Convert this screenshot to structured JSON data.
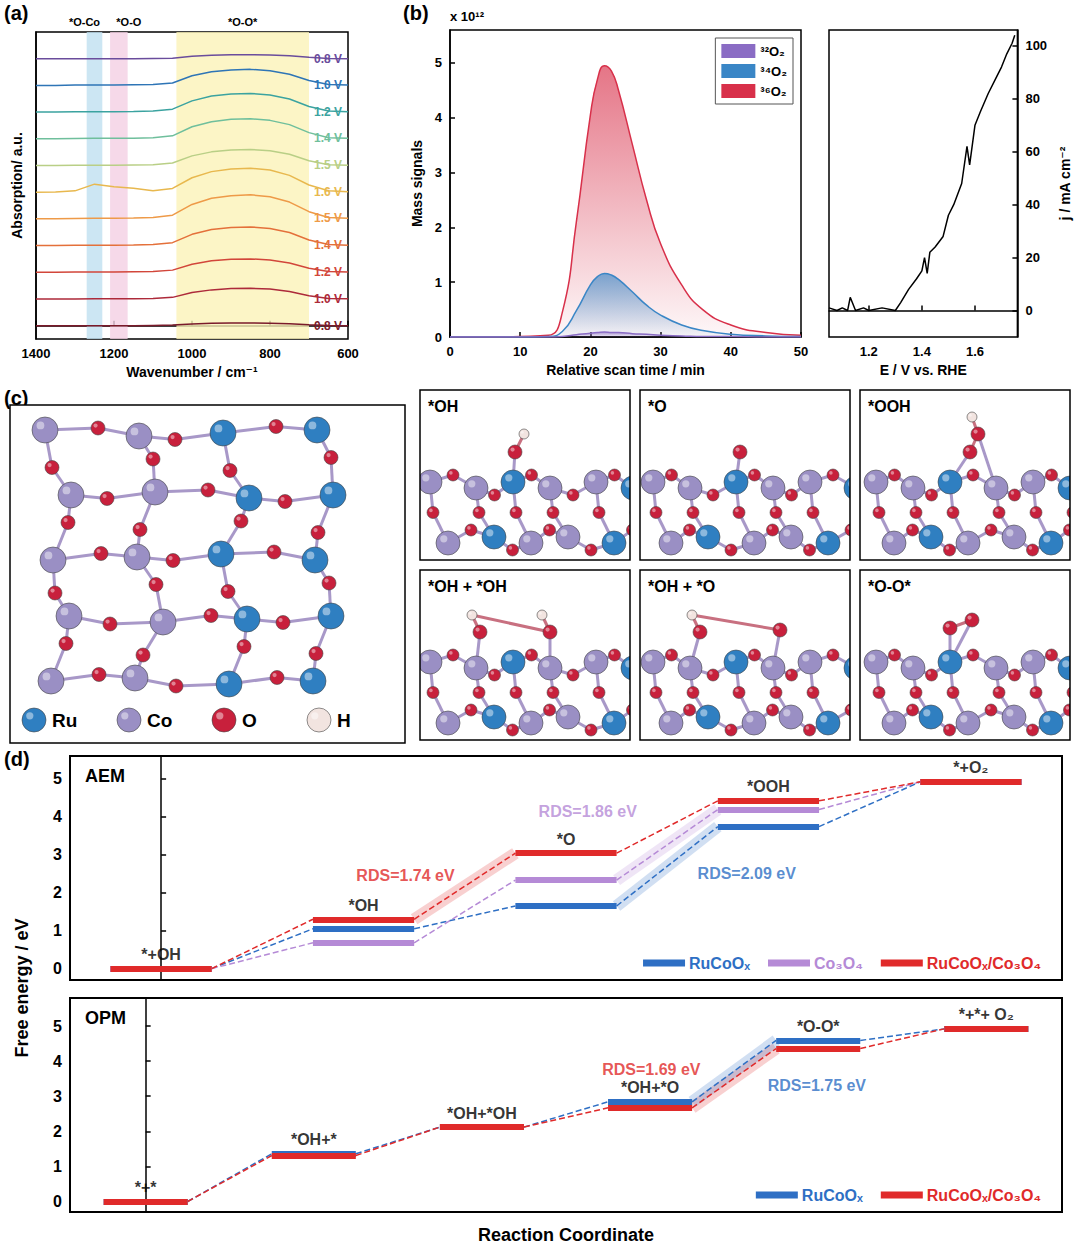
{
  "panel_labels": [
    "(a)",
    "(b)",
    "(c)",
    "(d)"
  ],
  "chart_data": [
    {
      "type": "line",
      "xlabel": "Wavenumber / cm⁻¹",
      "ylabel": "Absorption/ a.u.",
      "xlim": [
        1400,
        600
      ],
      "xticks": [
        1400,
        1200,
        1000,
        800,
        600
      ],
      "ylim": [
        -0.5,
        11
      ],
      "yticks": [],
      "tick_labels": "x",
      "bands": [
        {
          "label": "*O-Co",
          "from": 1270,
          "to": 1230,
          "color": "#bfe0f0"
        },
        {
          "label": "*O-O",
          "from": 1210,
          "to": 1165,
          "color": "#f4d0e4"
        },
        {
          "label": "*O-O*",
          "from": 1040,
          "to": 700,
          "color": "#fbf2b8"
        }
      ],
      "x": [
        1400,
        1350,
        1300,
        1250,
        1200,
        1150,
        1100,
        1050,
        1000,
        950,
        900,
        850,
        800,
        750,
        700,
        650,
        600
      ],
      "series": [
        {
          "name": "0.8 V",
          "color": "#6a4c9c",
          "values": [
            10,
            10,
            10,
            10,
            10,
            10,
            10.01,
            10.02,
            10.09,
            10.13,
            10.15,
            10.15,
            10.14,
            10.11,
            10.05,
            10.01,
            10
          ]
        },
        {
          "name": "1.0 V",
          "color": "#2e75b6",
          "values": [
            9,
            9,
            9.01,
            9.01,
            9.01,
            9.02,
            9.03,
            9.09,
            9.36,
            9.51,
            9.58,
            9.6,
            9.55,
            9.42,
            9.18,
            9.03,
            9.01
          ]
        },
        {
          "name": "1.2 V",
          "color": "#3ba3a0",
          "values": [
            8,
            8,
            8.01,
            8.01,
            8.01,
            8.02,
            8.04,
            8.11,
            8.42,
            8.6,
            8.68,
            8.7,
            8.64,
            8.49,
            8.21,
            8.04,
            8.01
          ]
        },
        {
          "name": "1.4 V",
          "color": "#6fbf9c",
          "values": [
            7,
            7,
            7.01,
            7.02,
            7.02,
            7.02,
            7.04,
            7.11,
            7.45,
            7.64,
            7.73,
            7.75,
            7.69,
            7.53,
            7.23,
            7.04,
            7.02
          ]
        },
        {
          "name": "1.5 V",
          "color": "#b9cf86",
          "values": [
            6,
            6,
            6.01,
            6.01,
            6.01,
            6.02,
            6.03,
            6.09,
            6.36,
            6.51,
            6.58,
            6.6,
            6.55,
            6.42,
            6.18,
            6.03,
            6.01
          ]
        },
        {
          "name": "1.6 V",
          "color": "#e8b84e",
          "values": [
            5,
            5.01,
            5.05,
            5.3,
            5.2,
            5.15,
            5.05,
            5.14,
            5.54,
            5.77,
            5.87,
            5.9,
            5.83,
            5.63,
            5.27,
            5.05,
            5.02
          ]
        },
        {
          "name": "1.5 V",
          "color": "#ee9a48",
          "values": [
            4,
            4,
            4.01,
            4.02,
            4.02,
            4.03,
            4.05,
            4.14,
            4.54,
            4.77,
            4.87,
            4.9,
            4.83,
            4.63,
            4.27,
            4.05,
            4.02
          ]
        },
        {
          "name": "1.4 V",
          "color": "#e4703a",
          "values": [
            3,
            3,
            3.01,
            3.01,
            3.01,
            3.02,
            3.04,
            3.11,
            3.42,
            3.6,
            3.68,
            3.7,
            3.64,
            3.49,
            3.21,
            3.04,
            3.01
          ]
        },
        {
          "name": "1.2 V",
          "color": "#d2463a",
          "values": [
            2,
            2,
            2.01,
            2.01,
            2.01,
            2.02,
            2.03,
            2.08,
            2.3,
            2.43,
            2.49,
            2.5,
            2.46,
            2.35,
            2.15,
            2.03,
            2.01
          ]
        },
        {
          "name": "1.0 V",
          "color": "#ad2a3a",
          "values": [
            1,
            1,
            1,
            1.01,
            1.01,
            1.01,
            1.02,
            1.06,
            1.24,
            1.34,
            1.39,
            1.4,
            1.37,
            1.28,
            1.12,
            1.02,
            1.01
          ]
        },
        {
          "name": "0.8 V",
          "color": "#7a1a2a",
          "values": [
            0,
            0,
            0,
            0,
            0,
            0,
            0.01,
            0.02,
            0.06,
            0.09,
            0.1,
            0.1,
            0.09,
            0.07,
            0.03,
            0.01,
            0
          ]
        }
      ]
    },
    {
      "type": "line",
      "xlabel": "Relative scan time / min",
      "ylabel": "Mass signals",
      "annotations": [
        {
          "text": "x 10¹²"
        }
      ],
      "xlim": [
        0,
        50
      ],
      "xticks": [
        0,
        10,
        20,
        30,
        40,
        50
      ],
      "ylim": [
        0,
        5.6
      ],
      "yticks": [
        0,
        1,
        2,
        3,
        4,
        5
      ],
      "legend": "top-right",
      "x": [
        0,
        5,
        10,
        14,
        16,
        18,
        20,
        21,
        22,
        23,
        24,
        26,
        28,
        30,
        33,
        36,
        40,
        45,
        50
      ],
      "series": [
        {
          "name": "³²O₂",
          "color": "#8a6cc4",
          "values": [
            0,
            0,
            0,
            0,
            0.01,
            0.04,
            0.07,
            0.08,
            0.09,
            0.08,
            0.08,
            0.06,
            0.05,
            0.03,
            0.02,
            0.01,
            0.01,
            0,
            0
          ]
        },
        {
          "name": "³⁴O₂",
          "color": "#3a86c6",
          "values": [
            0,
            0,
            0,
            0.01,
            0.1,
            0.48,
            0.95,
            1.1,
            1.16,
            1.13,
            1.05,
            0.82,
            0.58,
            0.4,
            0.22,
            0.12,
            0.05,
            0.02,
            0.01
          ]
        },
        {
          "name": "³⁶O₂",
          "color": "#d8304a",
          "values": [
            0,
            0,
            0.01,
            0.03,
            0.45,
            2.1,
            4.05,
            4.7,
            4.95,
            4.85,
            4.5,
            3.5,
            2.5,
            1.7,
            0.95,
            0.5,
            0.22,
            0.08,
            0.03
          ]
        }
      ]
    },
    {
      "type": "line",
      "xlabel": "E / V vs. RHE",
      "ylabel": "j / mA cm⁻²",
      "xlim": [
        1.05,
        1.76
      ],
      "xticks": [
        1.2,
        1.4,
        1.6
      ],
      "ylim": [
        -10,
        106
      ],
      "yticks": [
        0,
        20,
        40,
        60,
        80,
        100
      ],
      "color": "#000000",
      "x": [
        1.05,
        1.08,
        1.1,
        1.12,
        1.13,
        1.15,
        1.18,
        1.2,
        1.25,
        1.3,
        1.32,
        1.35,
        1.38,
        1.4,
        1.41,
        1.42,
        1.43,
        1.45,
        1.48,
        1.5,
        1.52,
        1.55,
        1.57,
        1.58,
        1.6,
        1.62,
        1.65,
        1.68,
        1.7,
        1.72,
        1.74,
        1.75
      ],
      "values": [
        1,
        0,
        1,
        0,
        5,
        0,
        1,
        0,
        1,
        0,
        3,
        8,
        12,
        15,
        20,
        14,
        22,
        24,
        28,
        36,
        40,
        48,
        62,
        55,
        70,
        75,
        82,
        88,
        92,
        97,
        101,
        104
      ]
    },
    {
      "type": "step",
      "title": "AEM",
      "ylabel": "Free energy / eV",
      "categories": [
        "*+OH",
        "*OH",
        "*O",
        "*OOH",
        "*+O₂"
      ],
      "ylim": [
        -0.3,
        5.6
      ],
      "yticks": [
        0,
        1,
        2,
        3,
        4,
        5
      ],
      "tick_labels": "y",
      "legend": "bottom-right",
      "series": [
        {
          "name": "RuCoOₓ",
          "color": "#2e6fc4",
          "values": [
            0,
            1.05,
            1.65,
            3.74,
            4.92
          ]
        },
        {
          "name": "Co₃O₄",
          "color": "#b58ad6",
          "values": [
            0,
            0.68,
            2.33,
            4.19,
            4.92
          ]
        },
        {
          "name": "RuCoOₓ/Co₃O₄",
          "color": "#e02a2a",
          "values": [
            0,
            1.3,
            3.04,
            4.42,
            4.92
          ]
        }
      ],
      "annotations": [
        {
          "text": "RDS=1.74 eV",
          "series": "RuCoOₓ/Co₃O₄",
          "from": 1,
          "to": 2
        },
        {
          "text": "RDS=1.86 eV",
          "series": "Co₃O₄",
          "from": 2,
          "to": 3
        },
        {
          "text": "RDS=2.09 eV",
          "series": "RuCoOₓ",
          "from": 2,
          "to": 3
        }
      ]
    },
    {
      "type": "step",
      "title": "OPM",
      "xlabel": "Reaction Coordinate",
      "categories": [
        "*+*",
        "*OH+*",
        "*OH+*OH",
        "*OH+*O",
        "*O-O*",
        "*+*+ O₂"
      ],
      "ylim": [
        -0.3,
        5.8
      ],
      "yticks": [
        0,
        1,
        2,
        3,
        4,
        5
      ],
      "tick_labels": "y",
      "legend": "bottom-right",
      "series": [
        {
          "name": "RuCoOₓ",
          "color": "#2e6fc4",
          "values": [
            0,
            1.36,
            2.12,
            2.84,
            4.59,
            4.92
          ]
        },
        {
          "name": "RuCoOₓ/Co₃O₄",
          "color": "#e02a2a",
          "values": [
            0,
            1.31,
            2.12,
            2.67,
            4.36,
            4.92
          ]
        }
      ],
      "annotations": [
        {
          "text": "RDS=1.69 eV",
          "series": "RuCoOₓ/Co₃O₄",
          "from": 3,
          "to": 4
        },
        {
          "text": "RDS=1.75 eV",
          "series": "RuCoOₓ",
          "from": 3,
          "to": 4
        }
      ]
    }
  ],
  "diagram": {
    "atom_legend": [
      {
        "label": "Ru",
        "color": "#2f7fc1"
      },
      {
        "label": "Co",
        "color": "#9a8fc4"
      },
      {
        "label": "O",
        "color": "#c8203c"
      },
      {
        "label": "H",
        "color": "#f2e4e0"
      }
    ],
    "snapshots": [
      "*OH",
      "*O",
      "*OOH",
      "*OH + *OH",
      "*OH + *O",
      "*O-O*"
    ]
  }
}
